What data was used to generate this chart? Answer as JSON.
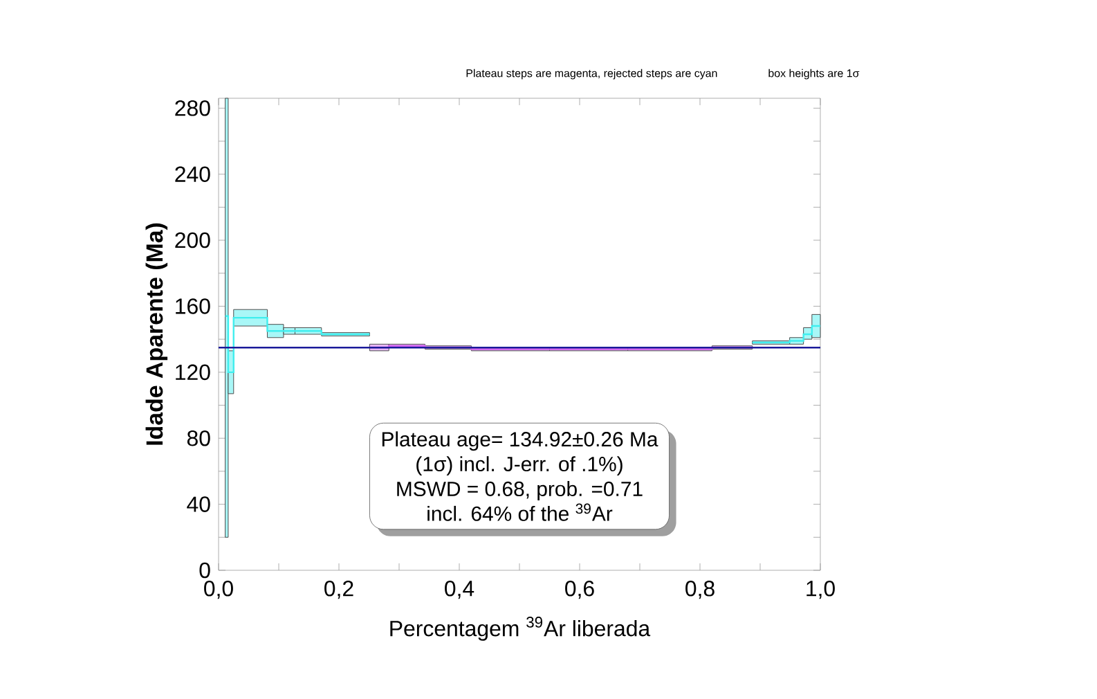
{
  "chart_data": {
    "type": "step",
    "xlabel": "Percentagem $^{39}$Ar  liberada",
    "ylabel": "**Idade Aparente (Ma)**",
    "annotations": [
      "Plateau steps are magenta, rejected steps are cyan",
      "box heights are 1σ",
      "Plateau age= 134.92±0.26 Ma",
      "(1σ) incl. J-err. of .1%)",
      "MSWD = 0.68, prob. =0.71",
      "incl. 64% of the $^{39}$Ar"
    ],
    "xlim": [
      0,
      1
    ],
    "ylim": [
      0,
      286
    ],
    "xticks": [
      {
        "value": 0,
        "label": "0,0"
      },
      {
        "value": 0.1,
        "label": null
      },
      {
        "value": 0.2,
        "label": "0,2"
      },
      {
        "value": 0.3,
        "label": null
      },
      {
        "value": 0.4,
        "label": "0,4"
      },
      {
        "value": 0.5,
        "label": null
      },
      {
        "value": 0.6,
        "label": "0,6"
      },
      {
        "value": 0.7,
        "label": null
      },
      {
        "value": 0.8,
        "label": "0,8"
      },
      {
        "value": 0.9,
        "label": null
      },
      {
        "value": 1,
        "label": "1,0"
      }
    ],
    "yticks": [
      0,
      {
        "value": 20,
        "label": null
      },
      40,
      {
        "value": 60,
        "label": null
      },
      80,
      {
        "value": 100,
        "label": null
      },
      120,
      {
        "value": 140,
        "label": null
      },
      160,
      {
        "value": 180,
        "label": null
      },
      200,
      {
        "value": 220,
        "label": null
      },
      240,
      {
        "value": 260,
        "label": null
      },
      280
    ],
    "ref_lines": [
      {
        "axis": "y",
        "value": 134.92,
        "color": "#1a1a9a"
      }
    ],
    "series": [
      {
        "color": "#40eeee",
        "x": [
          0.011,
          0.016,
          0.025,
          0.081,
          0.108,
          0.127,
          0.171,
          0.251
        ],
        "values": [
          154,
          120,
          153,
          145,
          145,
          145,
          143,
          143
        ],
        "lower": [
          20,
          107,
          148,
          141,
          143,
          143,
          142,
          142
        ],
        "upper": [
          286,
          133,
          158,
          149,
          147,
          147,
          144,
          144
        ]
      },
      {
        "color": "#d060f0",
        "x": [
          0.251,
          0.283,
          0.343,
          0.42,
          0.55,
          0.68,
          0.82,
          0.887
        ],
        "values": [
          135,
          136,
          135,
          134,
          134,
          134,
          135,
          135
        ],
        "lower": [
          133,
          135,
          134,
          133,
          133,
          133,
          134,
          134
        ],
        "upper": [
          137,
          137,
          136,
          135,
          135,
          135,
          136,
          136
        ]
      },
      {
        "color": "#40eeee",
        "x": [
          0.887,
          0.949,
          0.972,
          0.986,
          1.0
        ],
        "values": [
          138,
          139,
          143,
          148,
          148
        ],
        "lower": [
          137,
          137,
          140,
          141,
          141
        ],
        "upper": [
          139,
          141,
          147,
          155,
          155
        ]
      }
    ]
  }
}
